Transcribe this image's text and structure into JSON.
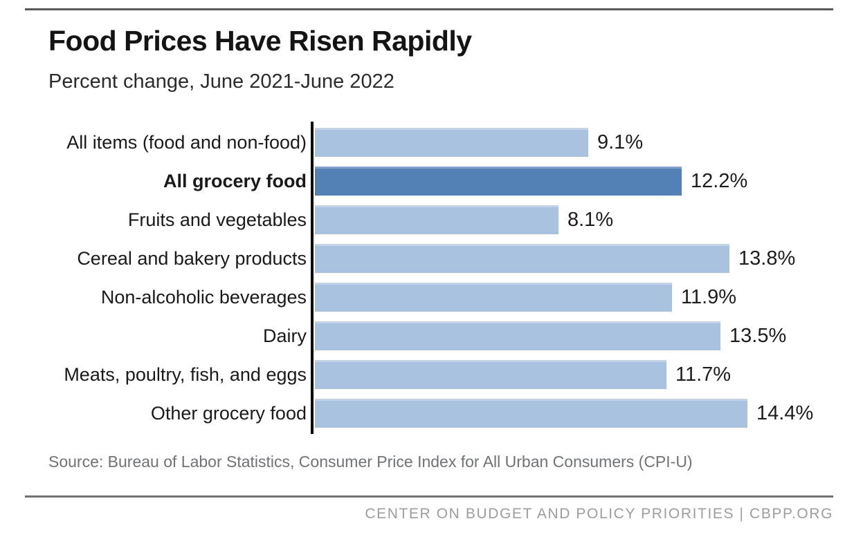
{
  "header": {
    "title": "Food Prices Have Risen Rapidly",
    "subtitle": "Percent change, June 2021-June 2022"
  },
  "chart_data": {
    "type": "bar",
    "orientation": "horizontal",
    "title": "Food Prices Have Risen Rapidly",
    "subtitle": "Percent change, June 2021-June 2022",
    "categories": [
      "All items (food and non-food)",
      "All grocery food",
      "Fruits and vegetables",
      "Cereal and bakery products",
      "Non-alcoholic beverages",
      "Dairy",
      "Meats, poultry, fish, and eggs",
      "Other grocery food"
    ],
    "values": [
      9.1,
      12.2,
      8.1,
      13.8,
      11.9,
      13.5,
      11.7,
      14.4
    ],
    "value_labels": [
      "9.1%",
      "12.2%",
      "8.1%",
      "13.8%",
      "11.9%",
      "13.5%",
      "11.7%",
      "14.4%"
    ],
    "highlight_index": 1,
    "xlim": [
      0,
      16.6
    ],
    "grid": false,
    "legend": "none",
    "bar_color": "#a9c2df",
    "highlight_color": "#5380b5",
    "axis_color": "#000000"
  },
  "footer": {
    "source": "Source: Bureau of Labor Statistics, Consumer Price Index for All Urban Consumers (CPI-U)",
    "branding": "CENTER ON BUDGET AND POLICY PRIORITIES | CBPP.ORG"
  }
}
